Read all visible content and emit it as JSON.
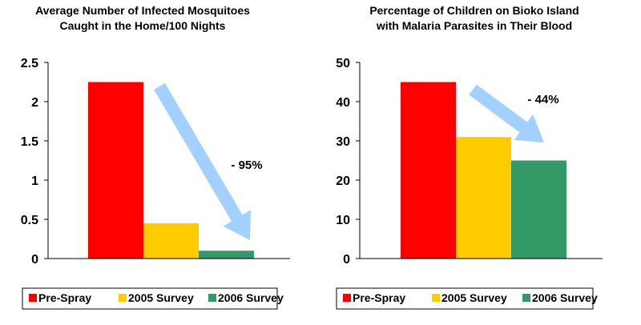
{
  "chart_data": [
    {
      "type": "bar",
      "title_lines": [
        "Average Number of Infected Mosquitoes",
        "Caught in the Home/100 Nights"
      ],
      "xlabel": "",
      "ylabel": "",
      "ylim": [
        0,
        2.5
      ],
      "yticks": [
        "0",
        "0.5",
        "1",
        "1.5",
        "2",
        "2.5"
      ],
      "categories": [
        "Pre-Spray",
        "2005 Survey",
        "2006 Survey"
      ],
      "values": [
        2.25,
        0.45,
        0.1
      ],
      "colors": [
        "#ff0000",
        "#ffcc00",
        "#339966"
      ],
      "annotation": "- 95%",
      "grid": false,
      "legend": "bottom"
    },
    {
      "type": "bar",
      "title_lines": [
        "Percentage of Children on Bioko Island",
        "with Malaria Parasites in Their Blood"
      ],
      "xlabel": "",
      "ylabel": "",
      "ylim": [
        0,
        50
      ],
      "yticks": [
        "0",
        "10",
        "20",
        "30",
        "40",
        "50"
      ],
      "categories": [
        "Pre-Spray",
        "2005 Survey",
        "2006 Survey"
      ],
      "values": [
        45,
        31,
        25
      ],
      "colors": [
        "#ff0000",
        "#ffcc00",
        "#339966"
      ],
      "annotation": "- 44%",
      "grid": false,
      "legend": "bottom"
    }
  ],
  "arrow_color": "#99ccff"
}
